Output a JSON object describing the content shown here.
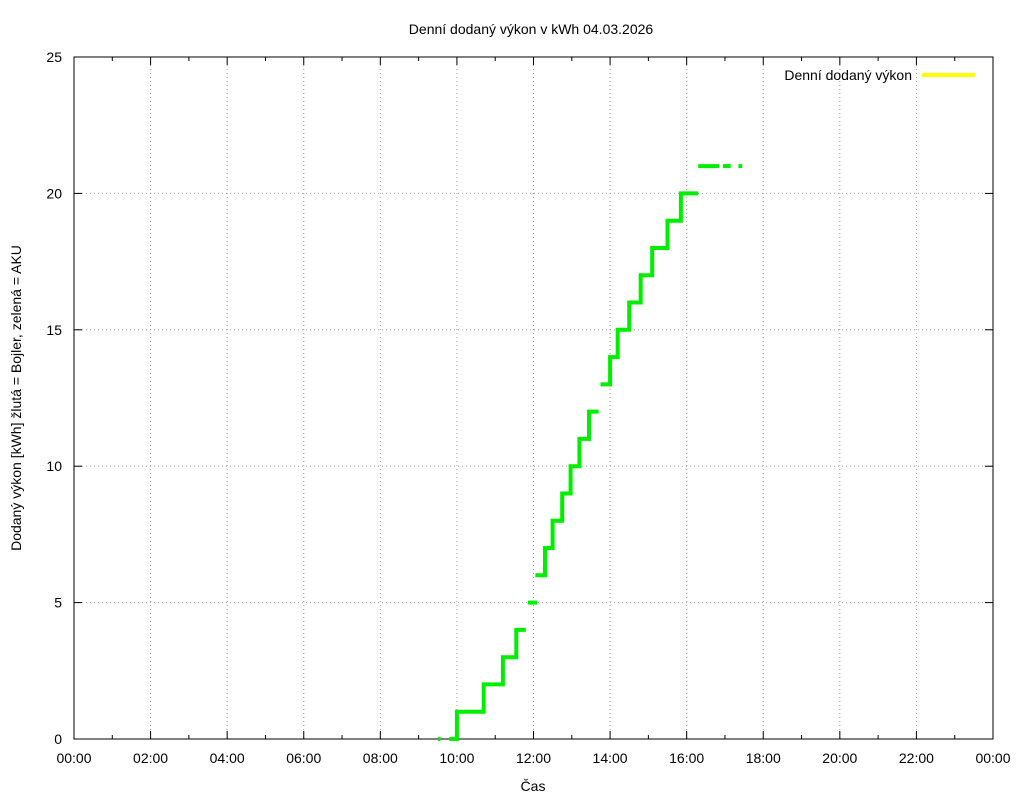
{
  "chart_data": {
    "type": "line",
    "title": "Denní dodaný výkon v kWh 04.03.2026",
    "xlabel": "Čas",
    "ylabel": "Dodaný výkon [kWh]  žlutá = Bojler, zelená = AKU",
    "xlim": [
      0,
      24
    ],
    "ylim": [
      0,
      25
    ],
    "x_tick_labels": [
      "00:00",
      "02:00",
      "04:00",
      "06:00",
      "08:00",
      "10:00",
      "12:00",
      "14:00",
      "16:00",
      "18:00",
      "20:00",
      "22:00",
      "00:00"
    ],
    "y_tick_labels": [
      "0",
      "5",
      "10",
      "15",
      "20",
      "25"
    ],
    "grid": true,
    "legend_position": "top-right",
    "legend": [
      {
        "name": "Denní dodaný výkon",
        "color": "#ffff00"
      }
    ],
    "series": [
      {
        "name": "AKU",
        "color": "#00ee00",
        "segments": [
          [
            [
              9.5,
              0
            ],
            [
              9.57,
              0
            ]
          ],
          [
            [
              9.8,
              0
            ],
            [
              10.0,
              0
            ],
            [
              10.0,
              1
            ],
            [
              10.7,
              1
            ],
            [
              10.7,
              2
            ],
            [
              11.2,
              2
            ],
            [
              11.2,
              3
            ],
            [
              11.55,
              3
            ],
            [
              11.55,
              4
            ],
            [
              11.8,
              4
            ]
          ],
          [
            [
              11.85,
              5
            ],
            [
              12.1,
              5
            ]
          ],
          [
            [
              12.05,
              6
            ],
            [
              12.3,
              6
            ],
            [
              12.3,
              7
            ],
            [
              12.5,
              7
            ],
            [
              12.5,
              8
            ],
            [
              12.75,
              8
            ],
            [
              12.75,
              9
            ],
            [
              12.97,
              9
            ],
            [
              12.97,
              10
            ],
            [
              13.2,
              10
            ],
            [
              13.2,
              11
            ],
            [
              13.45,
              11
            ],
            [
              13.45,
              12
            ],
            [
              13.7,
              12
            ]
          ],
          [
            [
              13.75,
              13
            ],
            [
              14.0,
              13
            ],
            [
              14.0,
              14
            ],
            [
              14.2,
              14
            ],
            [
              14.2,
              15
            ],
            [
              14.5,
              15
            ],
            [
              14.5,
              16
            ],
            [
              14.8,
              16
            ],
            [
              14.8,
              17
            ],
            [
              15.1,
              17
            ],
            [
              15.1,
              18
            ],
            [
              15.5,
              18
            ],
            [
              15.5,
              19
            ],
            [
              15.85,
              19
            ],
            [
              15.85,
              20
            ],
            [
              16.3,
              20
            ]
          ],
          [
            [
              16.3,
              21
            ],
            [
              16.85,
              21
            ]
          ],
          [
            [
              16.95,
              21
            ],
            [
              17.15,
              21
            ]
          ],
          [
            [
              17.35,
              21
            ],
            [
              17.45,
              21
            ]
          ]
        ]
      }
    ]
  }
}
